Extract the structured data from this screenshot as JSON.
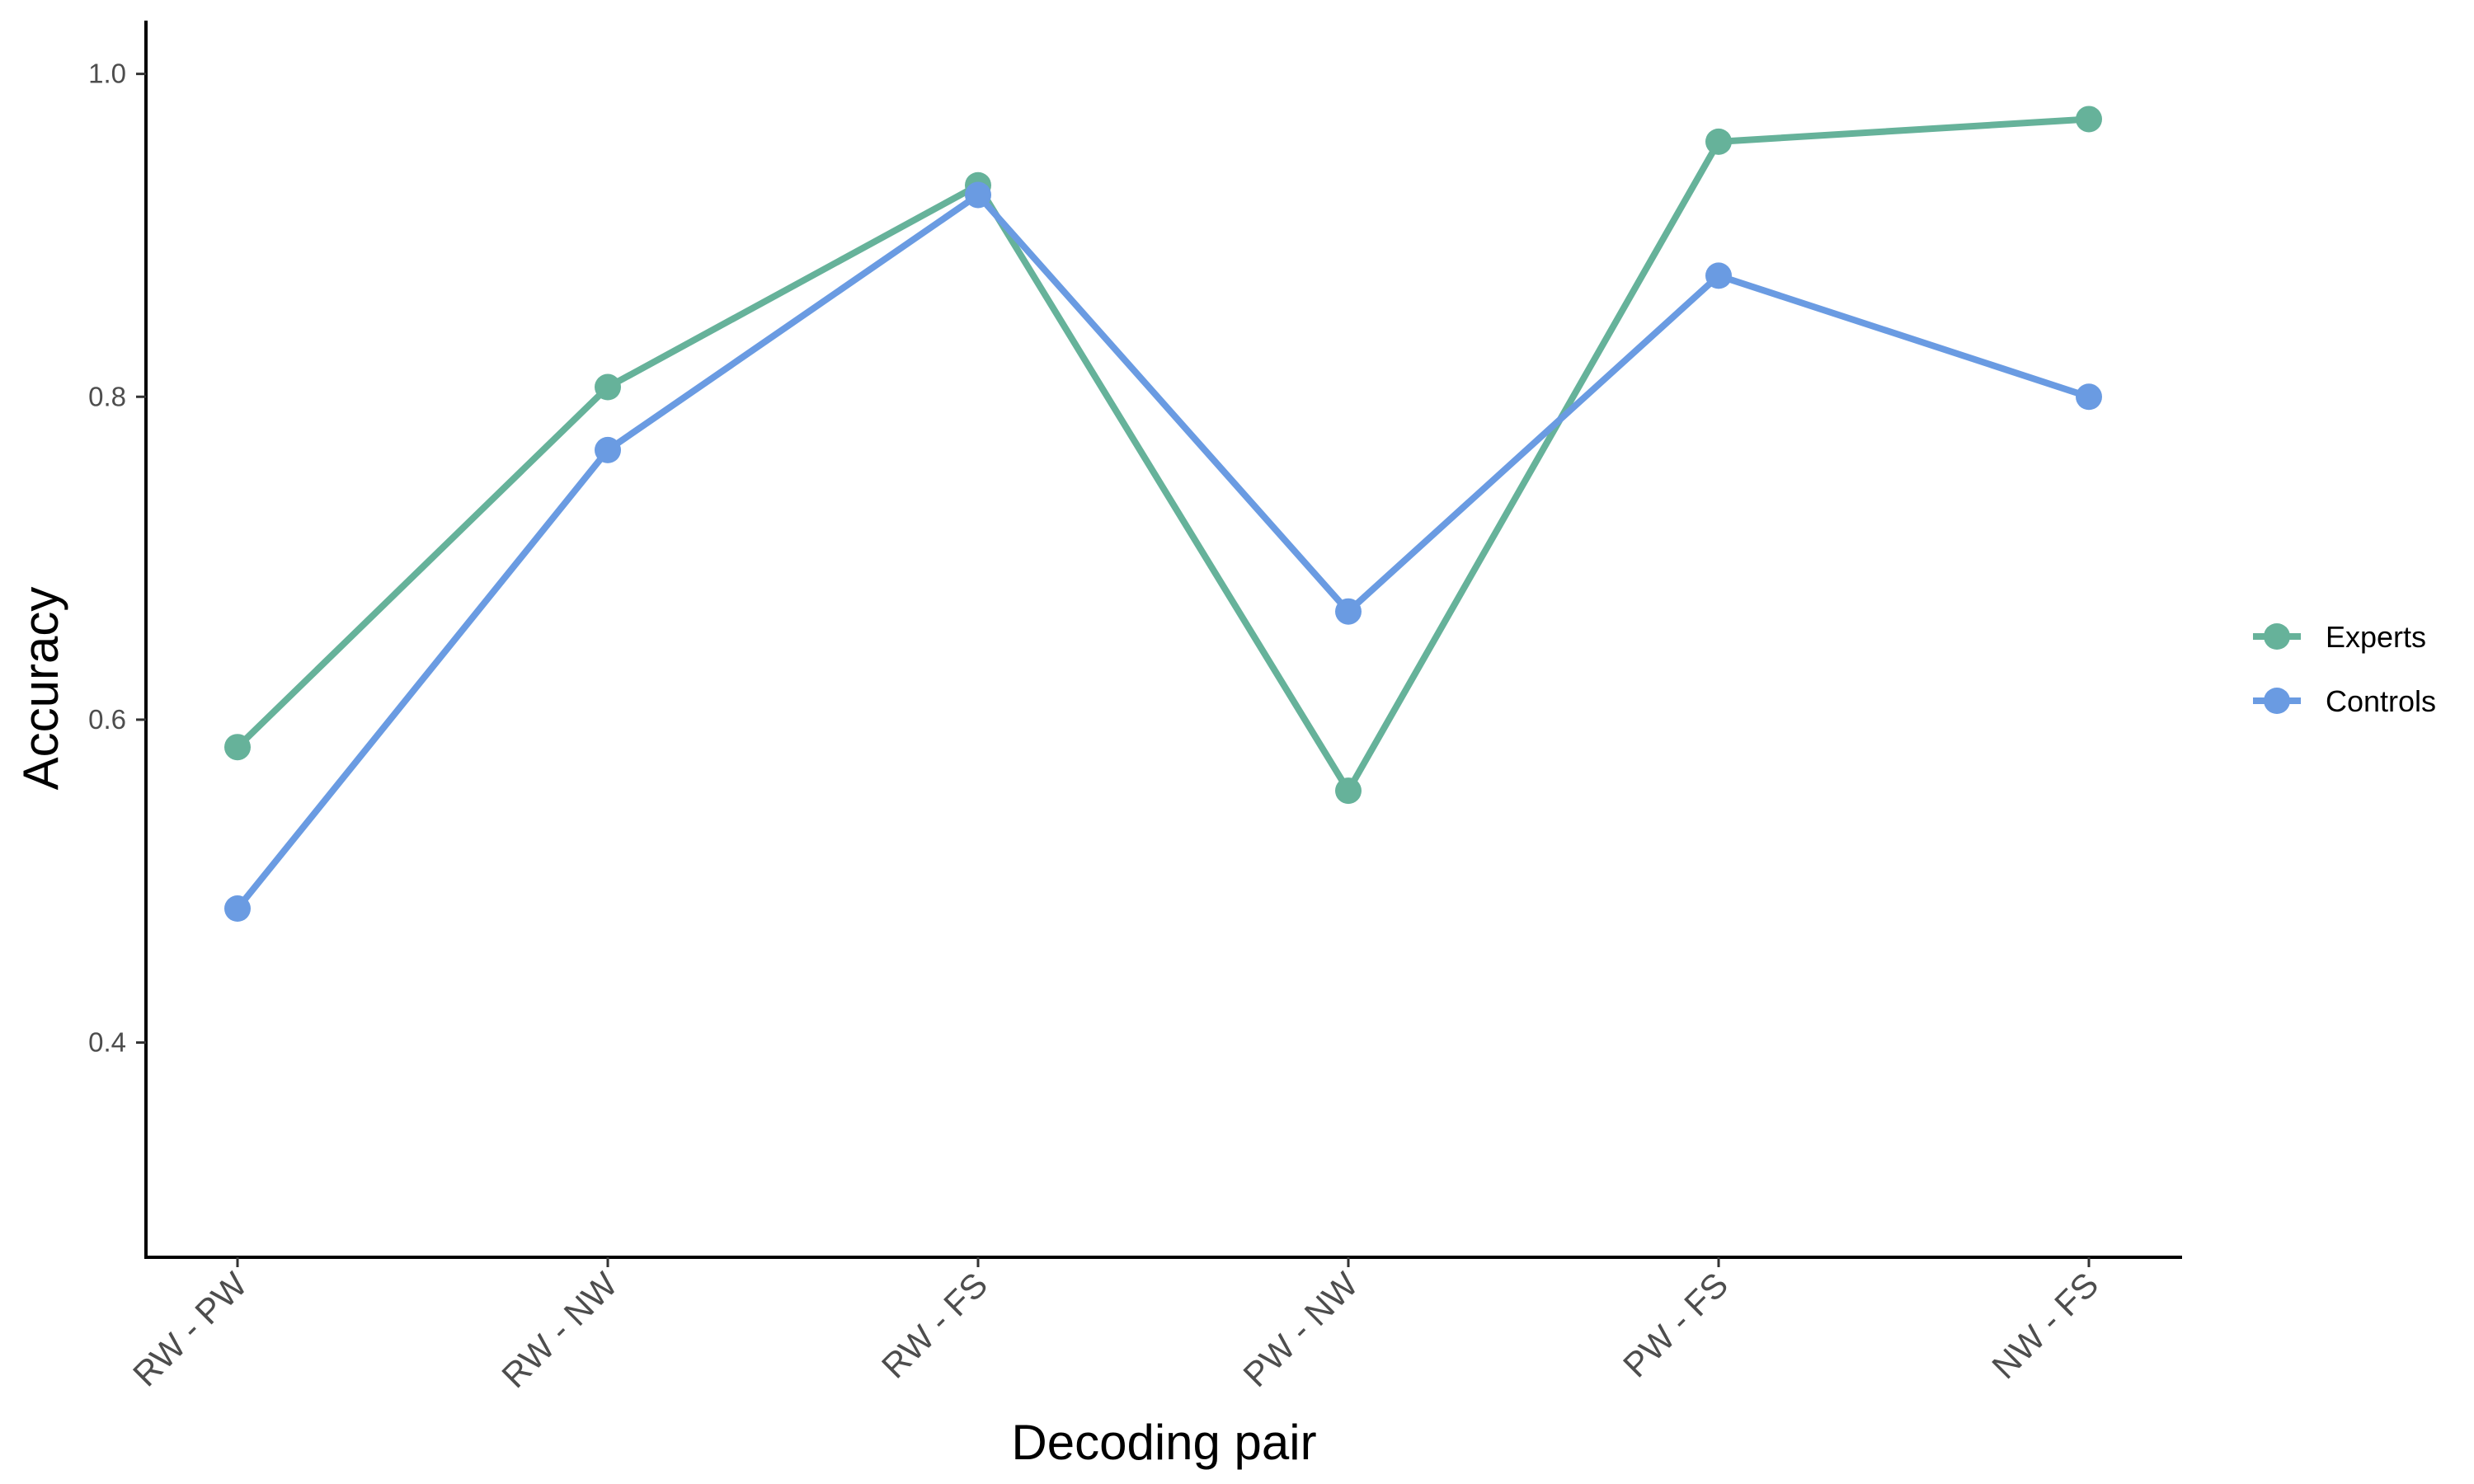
{
  "chart_data": {
    "type": "line",
    "title": "",
    "xlabel": "Decoding pair",
    "ylabel": "Accuracy",
    "categories": [
      "RW - PW",
      "RW - NW",
      "RW - FS",
      "PW - NW",
      "PW - FS",
      "NW - FS"
    ],
    "ylim": [
      0.267,
      1.033
    ],
    "yticks": [
      0.4,
      0.6,
      0.8,
      1.0
    ],
    "ytick_labels": [
      "0.4",
      "0.6",
      "0.8",
      "1.0"
    ],
    "grid": false,
    "legend_position": "right",
    "series": [
      {
        "name": "Experts",
        "color": "#66b29a",
        "values": [
          0.583,
          0.806,
          0.931,
          0.556,
          0.958,
          0.972
        ]
      },
      {
        "name": "Controls",
        "color": "#6a9be2",
        "values": [
          0.483,
          0.767,
          0.925,
          0.667,
          0.875,
          0.8
        ]
      }
    ]
  }
}
